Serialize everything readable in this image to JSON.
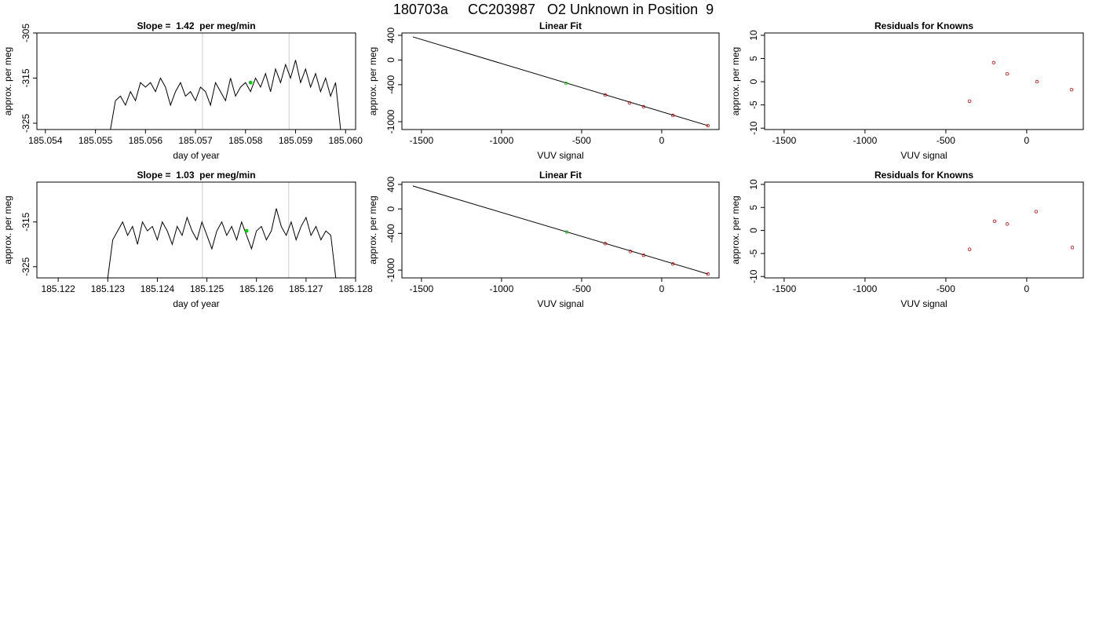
{
  "title": "180703a     CC203987   O2 Unknown in Position  9",
  "chart_data": [
    {
      "type": "line",
      "title": "Slope =  1.42  per meg/min",
      "xlabel": "day of year",
      "ylabel": "approx. per meg",
      "xlim": [
        185.05383,
        185.0602
      ],
      "xticks": [
        185.054,
        185.055,
        185.056,
        185.057,
        185.058,
        185.059,
        {
          "value": 185.06,
          "label": "185.060"
        }
      ],
      "ylim": [
        -326.4,
        -305
      ],
      "yticks": [
        -305,
        -315,
        -325
      ],
      "vlines": [
        185.05714,
        185.05887
      ],
      "vline_color": "#cccccc",
      "series": [
        {
          "draw": "line",
          "color": "#000000",
          "x": [
            185.0553,
            185.0554,
            185.0555,
            185.0556,
            185.0557,
            185.0558,
            185.0559,
            185.056,
            185.0561,
            185.0562,
            185.0563,
            185.0564,
            185.0565,
            185.0566,
            185.0567,
            185.0568,
            185.0569,
            185.057,
            185.0571,
            185.0572,
            185.0573,
            185.0574,
            185.0575,
            185.0576,
            185.0577,
            185.0578,
            185.0579,
            185.058,
            185.0581,
            185.0582,
            185.0583,
            185.0584,
            185.0585,
            185.0586,
            185.0587,
            185.0588,
            185.0589,
            185.059,
            185.0591,
            185.0592,
            185.0593,
            185.0594,
            185.0595,
            185.0596,
            185.0597,
            185.0598,
            185.0599
          ],
          "values": [
            -326.4,
            -320,
            -319,
            -321,
            -318,
            -320,
            -316,
            -317,
            -316,
            -318,
            -315,
            -317,
            -321,
            -318,
            -316,
            -319,
            -318,
            -320,
            -317,
            -318,
            -321,
            -316,
            -318,
            -320,
            -315,
            -319,
            -317,
            -316,
            -318,
            -315,
            -317,
            -314,
            -318,
            -313,
            -316,
            -312,
            -315,
            -311,
            -316,
            -313,
            -317,
            -314,
            -318,
            -315,
            -319,
            -316,
            -326.4
          ]
        },
        {
          "draw": "points",
          "filled": true,
          "color": "#00cc00",
          "x": [
            185.0581
          ],
          "values": [
            -316
          ]
        }
      ]
    },
    {
      "type": "scatter",
      "title": "Linear Fit",
      "xlabel": "VUV signal",
      "ylabel": "approx. per meg",
      "xlim": [
        -1622,
        358
      ],
      "xticks": [
        -1500,
        -1000,
        -500,
        0
      ],
      "ylim": [
        -1127,
        438
      ],
      "yticks": [
        400,
        0,
        -400,
        -1000
      ],
      "series": [
        {
          "draw": "line",
          "color": "#000000",
          "x": [
            -1554,
            289
          ],
          "values": [
            375,
            -1064
          ]
        },
        {
          "draw": "points",
          "color": "#00cc00",
          "x": [
            -598
          ],
          "values": [
            -377
          ]
        },
        {
          "draw": "points",
          "color": "#cc0000",
          "x": [
            -353,
            -201,
            -113,
            69,
            289
          ],
          "values": [
            -567,
            -695,
            -758,
            -898,
            -1064
          ]
        }
      ]
    },
    {
      "type": "scatter",
      "title": "Residuals for Knowns",
      "xlabel": "VUV signal",
      "ylabel": "approx. per meg",
      "xlim": [
        -1621,
        350
      ],
      "xticks": [
        -1500,
        -1000,
        -500,
        0
      ],
      "ylim": [
        -10.3,
        10.5
      ],
      "yticks": [
        10,
        5,
        0,
        -5,
        -10
      ],
      "series": [
        {
          "draw": "points",
          "color": "#cc0000",
          "x": [
            -354,
            -204,
            -121,
            63,
            277
          ],
          "values": [
            -4.2,
            4.1,
            1.7,
            0,
            -1.7
          ]
        }
      ]
    },
    {
      "type": "line",
      "title": "Slope =  1.03  per meg/min",
      "xlabel": "day of year",
      "ylabel": "approx. per meg",
      "xlim": [
        185.12157,
        185.128
      ],
      "xticks": [
        185.122,
        185.123,
        185.124,
        185.125,
        185.126,
        185.127,
        185.128
      ],
      "ylim": [
        -327.5,
        -306.1
      ],
      "yticks": [
        -315,
        -325
      ],
      "vlines": [
        185.12491,
        185.12665
      ],
      "vline_color": "#cccccc",
      "series": [
        {
          "draw": "line",
          "color": "#000000",
          "x": [
            185.123,
            185.1231,
            185.1232,
            185.1233,
            185.1234,
            185.1235,
            185.1236,
            185.1237,
            185.1238,
            185.1239,
            185.124,
            185.1241,
            185.1242,
            185.1243,
            185.1244,
            185.1245,
            185.1246,
            185.1247,
            185.1248,
            185.1249,
            185.125,
            185.1251,
            185.1252,
            185.1253,
            185.1254,
            185.1255,
            185.1256,
            185.1257,
            185.1258,
            185.1259,
            185.126,
            185.1261,
            185.1262,
            185.1263,
            185.1264,
            185.1265,
            185.1266,
            185.1267,
            185.1268,
            185.1269,
            185.127,
            185.1271,
            185.1272,
            185.1273,
            185.1274,
            185.1275,
            185.1276
          ],
          "values": [
            -327.5,
            -319,
            -317,
            -315,
            -318,
            -316,
            -320,
            -315,
            -317,
            -316,
            -319,
            -315,
            -317,
            -320,
            -316,
            -318,
            -314,
            -317,
            -319,
            -315,
            -318,
            -321,
            -317,
            -315,
            -318,
            -316,
            -319,
            -315,
            -318,
            -321,
            -317,
            -316,
            -319,
            -317,
            -312,
            -316,
            -318,
            -315,
            -319,
            -316,
            -314,
            -318,
            -316,
            -319,
            -317,
            -318,
            -327.5
          ]
        },
        {
          "draw": "points",
          "filled": true,
          "color": "#00cc00",
          "x": [
            185.1258
          ],
          "values": [
            -317
          ]
        }
      ]
    },
    {
      "type": "scatter",
      "title": "Linear Fit",
      "xlabel": "VUV signal",
      "ylabel": "approx. per meg",
      "xlim": [
        -1622,
        358
      ],
      "xticks": [
        -1500,
        -1000,
        -500,
        0
      ],
      "ylim": [
        -1127,
        438
      ],
      "yticks": [
        400,
        0,
        -400,
        -1000
      ],
      "series": [
        {
          "draw": "line",
          "color": "#000000",
          "x": [
            -1554,
            289
          ],
          "values": [
            375,
            -1064
          ]
        },
        {
          "draw": "points",
          "color": "#00cc00",
          "x": [
            -593
          ],
          "values": [
            -377
          ]
        },
        {
          "draw": "points",
          "color": "#cc0000",
          "x": [
            -353,
            -196,
            -113,
            69,
            289
          ],
          "values": [
            -567,
            -695,
            -758,
            -898,
            -1064
          ]
        }
      ]
    },
    {
      "type": "scatter",
      "title": "Residuals for Knowns",
      "xlabel": "VUV signal",
      "ylabel": "approx. per meg",
      "xlim": [
        -1621,
        350
      ],
      "xticks": [
        -1500,
        -1000,
        -500,
        0
      ],
      "ylim": [
        -10.3,
        10.5
      ],
      "yticks": [
        10,
        5,
        0,
        -5,
        -10
      ],
      "series": [
        {
          "draw": "points",
          "color": "#cc0000",
          "x": [
            -354,
            -199,
            -121,
            58,
            282
          ],
          "values": [
            -4.1,
            2.0,
            1.4,
            4.1,
            -3.7
          ]
        }
      ]
    }
  ]
}
